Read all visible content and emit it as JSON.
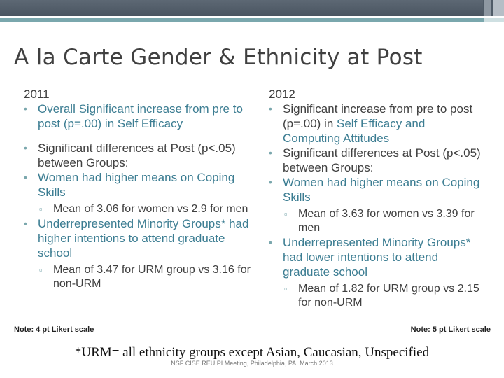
{
  "slide": {
    "title": "A la Carte Gender & Ethnicity at Post",
    "left": {
      "year": "2011",
      "b1_pre": "Overall Significant increase from pre to post (p=.00) in ",
      "b1_hl": "Self Efficacy",
      "b2": "Significant differences at Post (p<.05) between Groups:",
      "b3": "Women had higher means on Coping Skills",
      "b3_sub": "Mean of 3.06 for women vs 2.9 for men",
      "b4": "Underrepresented Minority Groups* had higher intentions to attend graduate school",
      "b4_sub": "Mean of 3.47 for URM group vs 3.16 for non-URM",
      "note": "Note: 4 pt Likert scale"
    },
    "right": {
      "year": "2012",
      "b1_pre": "Significant increase from pre to post (p=.00) in ",
      "b1_hl": "Self Efficacy and Computing Attitudes",
      "b2": "Significant differences at Post (p<.05) between Groups:",
      "b3": "Women had higher means on Coping Skills",
      "b3_sub": "Mean of 3.63 for women vs 3.39 for men",
      "b4": "Underrepresented Minority Groups* had lower intentions to attend graduate school",
      "b4_sub": "Mean of 1.82 for URM group vs 2.15 for non-URM",
      "note": "Note: 5 pt Likert scale"
    },
    "footnote": "*URM= all ethnicity groups except Asian, Caucasian, Unspecified",
    "footer": "NSF CISE REU PI Meeting, Philadelphia, PA, March 2013"
  },
  "colors": {
    "accent": "#7aa7ad",
    "highlight": "#3c7d92",
    "top_bar": "#4f5b67"
  }
}
